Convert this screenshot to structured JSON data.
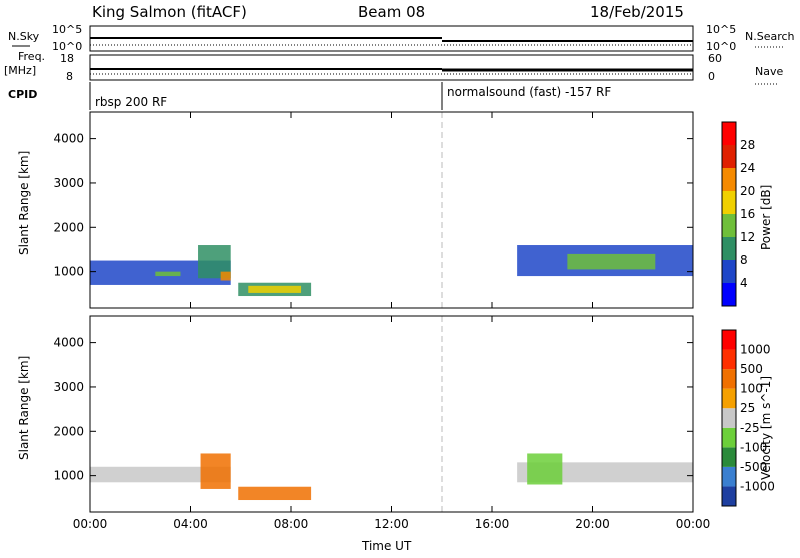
{
  "header": {
    "station": "King Salmon (fitACF)",
    "beam": "Beam 08",
    "date": "18/Feb/2015"
  },
  "strip_labels": {
    "nsky": "N.Sky",
    "freq": "Freq.",
    "freq_unit": "[MHz]",
    "cpid": "CPID",
    "nsearch": "N.Search",
    "nave": "Nave",
    "nsky_top": "10^5",
    "nsky_bottom": "10^0",
    "freq_top": "18",
    "freq_bottom": "8",
    "nsearch_top": "10^5",
    "nsearch_bottom": "10^0",
    "nave_top": "60",
    "nave_bottom": "0"
  },
  "cpid_segments": [
    {
      "label": "rbsp 200 RF",
      "start_hour": 0,
      "end_hour": 14
    },
    {
      "label": "normalsound (fast) -157 RF",
      "start_hour": 14,
      "end_hour": 24
    }
  ],
  "chart_data": [
    {
      "type": "heatmap",
      "name": "power",
      "ylabel": "Slant Range [km]",
      "xlabel": "Time UT",
      "x_range_hours": [
        0,
        24
      ],
      "ylim": [
        180,
        4600
      ],
      "xticks": [
        "00:00",
        "04:00",
        "08:00",
        "12:00",
        "16:00",
        "20:00",
        "00:00"
      ],
      "yticks": [
        1000,
        2000,
        3000,
        4000
      ],
      "colorbar": {
        "label": "Power [dB]",
        "ticks": [
          4,
          8,
          12,
          16,
          20,
          24,
          28
        ],
        "colors": [
          "#0000ff",
          "#1e46c8",
          "#2f8f64",
          "#6fbf3a",
          "#f0d000",
          "#f58a00",
          "#e02000",
          "#ff0000"
        ]
      },
      "echo_regions": [
        {
          "t0": 0.0,
          "t1": 5.6,
          "r0": 700,
          "r1": 1250,
          "color": "#1e46c8"
        },
        {
          "t0": 2.6,
          "t1": 3.6,
          "r0": 900,
          "r1": 1000,
          "color": "#6fbf3a"
        },
        {
          "t0": 4.3,
          "t1": 5.6,
          "r0": 850,
          "r1": 1600,
          "color": "#2f8f64"
        },
        {
          "t0": 5.2,
          "t1": 5.6,
          "r0": 800,
          "r1": 1000,
          "color": "#f58a00"
        },
        {
          "t0": 5.9,
          "t1": 8.8,
          "r0": 450,
          "r1": 750,
          "color": "#2f8f64"
        },
        {
          "t0": 6.3,
          "t1": 8.4,
          "r0": 520,
          "r1": 680,
          "color": "#f0d000"
        },
        {
          "t0": 17.0,
          "t1": 24.0,
          "r0": 900,
          "r1": 1600,
          "color": "#1e46c8"
        },
        {
          "t0": 19.0,
          "t1": 22.5,
          "r0": 1050,
          "r1": 1400,
          "color": "#6fbf3a"
        }
      ]
    },
    {
      "type": "heatmap",
      "name": "velocity",
      "ylabel": "Slant Range [km]",
      "xlabel": "Time UT",
      "x_range_hours": [
        0,
        24
      ],
      "ylim": [
        180,
        4600
      ],
      "xticks": [
        "00:00",
        "04:00",
        "08:00",
        "12:00",
        "16:00",
        "20:00",
        "00:00"
      ],
      "yticks": [
        1000,
        2000,
        3000,
        4000
      ],
      "colorbar": {
        "label": "Velocity [m s^-1]",
        "ticks": [
          1000,
          500,
          100,
          25,
          -25,
          -100,
          -500,
          -1000
        ],
        "colors": [
          "#1e3fa0",
          "#3a7fd0",
          "#2a8a3a",
          "#6ccf3a",
          "#c8c8c8",
          "#f5a000",
          "#f07000",
          "#ff3000",
          "#ff0000"
        ]
      },
      "echo_regions": [
        {
          "t0": 0.0,
          "t1": 5.6,
          "r0": 850,
          "r1": 1200,
          "color": "#c8c8c8"
        },
        {
          "t0": 4.4,
          "t1": 5.6,
          "r0": 700,
          "r1": 1500,
          "color": "#f07000"
        },
        {
          "t0": 5.9,
          "t1": 8.8,
          "r0": 450,
          "r1": 750,
          "color": "#f07000"
        },
        {
          "t0": 17.0,
          "t1": 24.0,
          "r0": 850,
          "r1": 1300,
          "color": "#c8c8c8"
        },
        {
          "t0": 17.4,
          "t1": 18.8,
          "r0": 800,
          "r1": 1500,
          "color": "#6ccf3a"
        }
      ]
    }
  ]
}
